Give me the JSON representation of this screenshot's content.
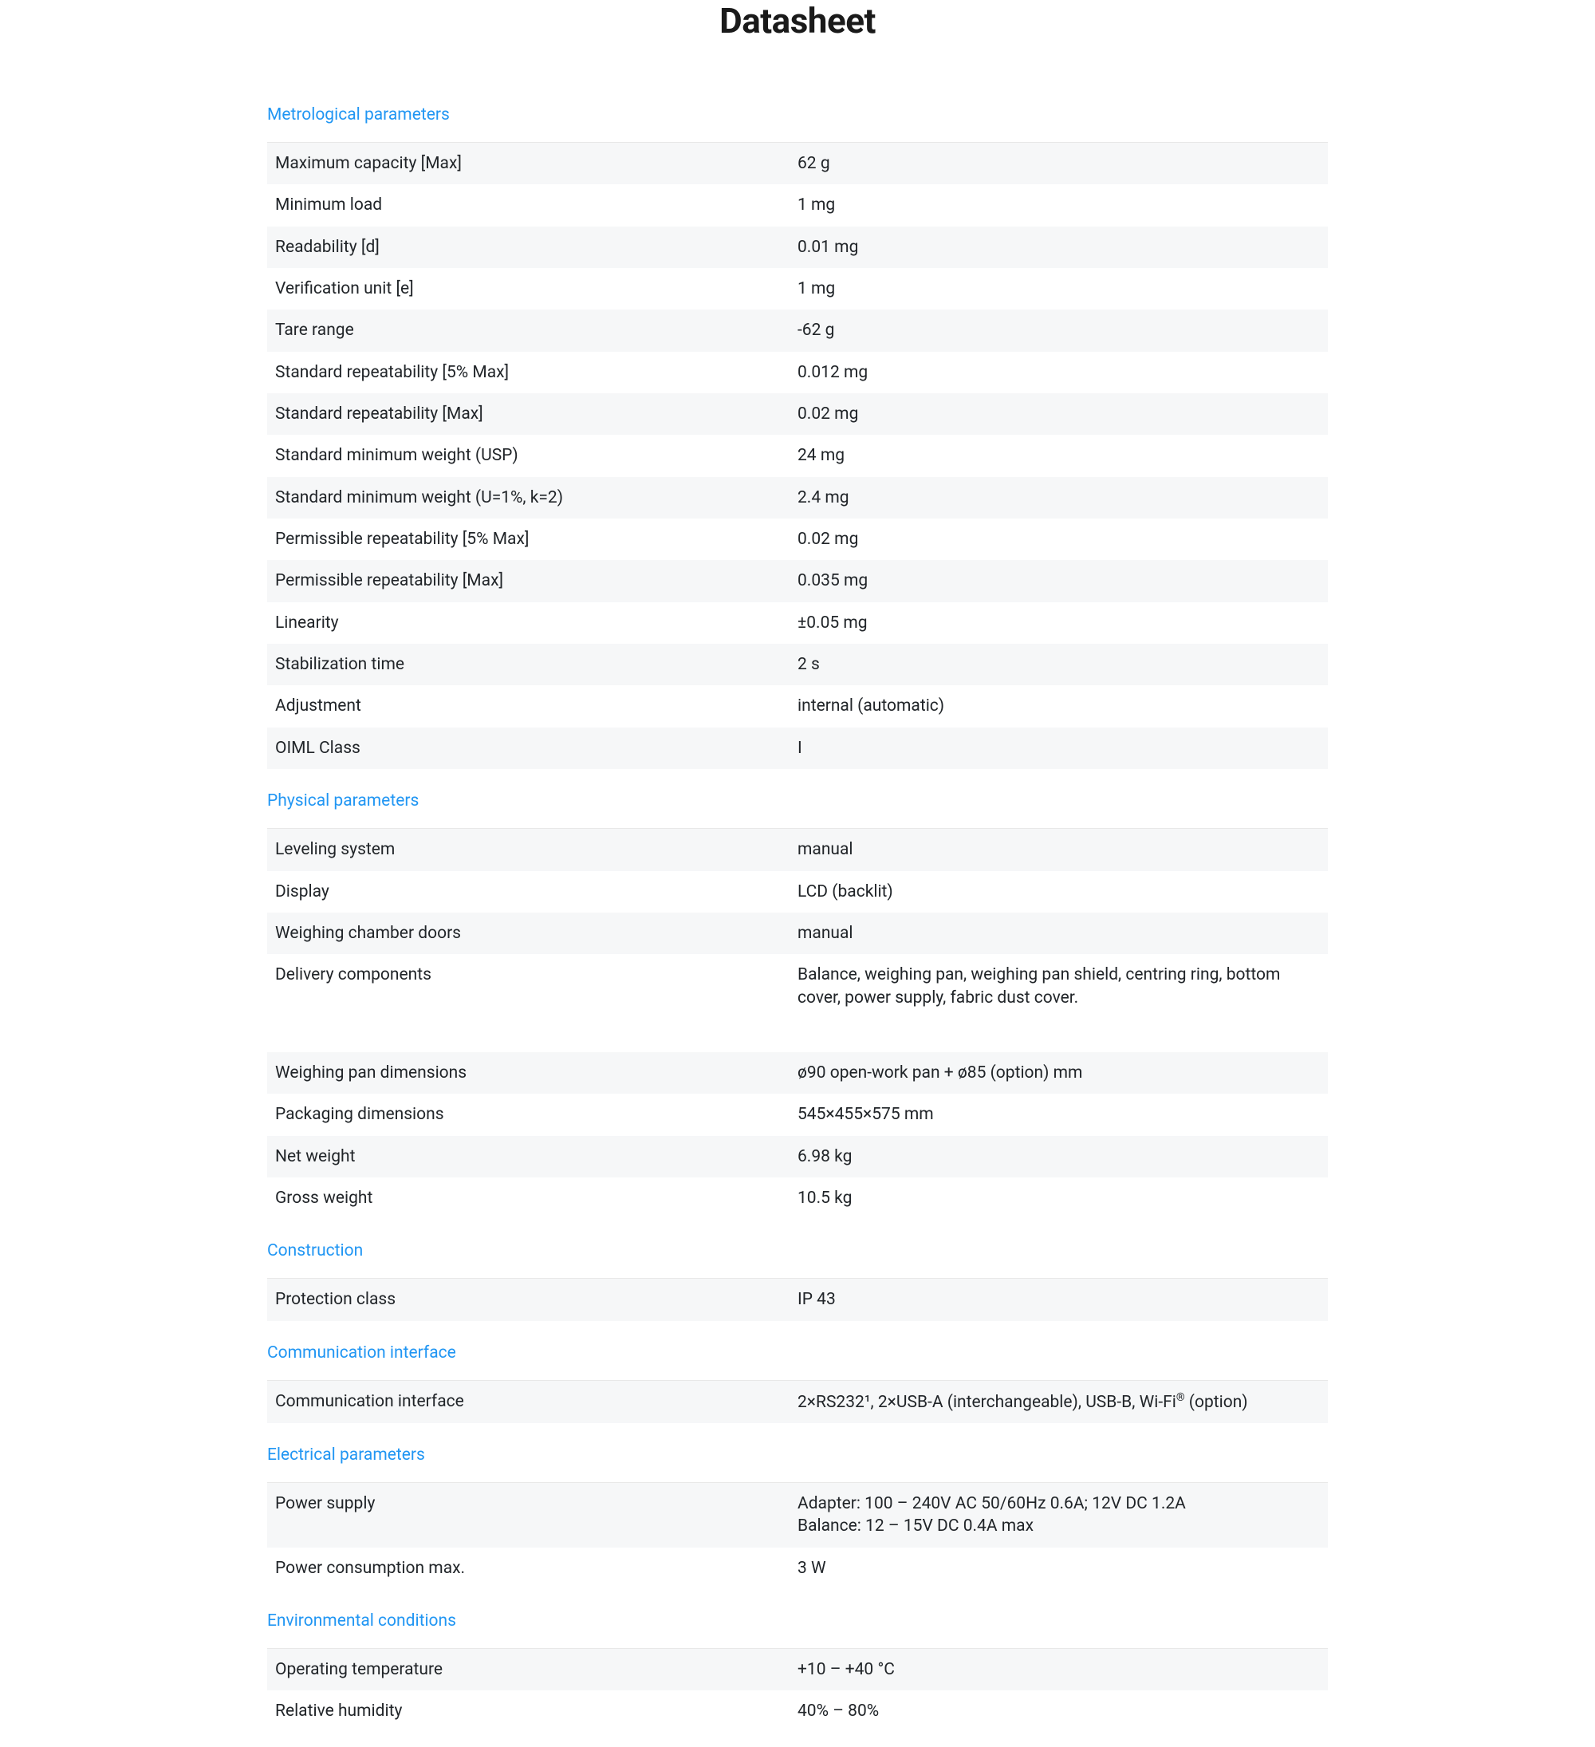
{
  "title": "Datasheet",
  "sections": [
    {
      "header": "Metrological parameters",
      "rows": [
        {
          "label": "Maximum capacity [Max]",
          "value": "62 g"
        },
        {
          "label": "Minimum load",
          "value": "1 mg"
        },
        {
          "label": "Readability [d]",
          "value": "0.01 mg"
        },
        {
          "label": "Verification unit [e]",
          "value": "1 mg"
        },
        {
          "label": "Tare range",
          "value": "-62 g"
        },
        {
          "label": "Standard repeatability [5% Max]",
          "value": "0.012 mg"
        },
        {
          "label": "Standard repeatability [Max]",
          "value": "0.02 mg"
        },
        {
          "label": "Standard minimum weight (USP)",
          "value": "24 mg"
        },
        {
          "label": "Standard minimum weight (U=1%, k=2)",
          "value": "2.4 mg"
        },
        {
          "label": "Permissible repeatability [5% Max]",
          "value": "0.02 mg"
        },
        {
          "label": "Permissible repeatability [Max]",
          "value": "0.035 mg"
        },
        {
          "label": "Linearity",
          "value": "±0.05 mg"
        },
        {
          "label": "Stabilization time",
          "value": "2 s"
        },
        {
          "label": "Adjustment",
          "value": "internal (automatic)"
        },
        {
          "label": "OIML Class",
          "value": "I"
        }
      ]
    },
    {
      "header": "Physical parameters",
      "rows": [
        {
          "label": "Leveling system",
          "value": "manual"
        },
        {
          "label": "Display",
          "value": "LCD (backlit)"
        },
        {
          "label": "Weighing chamber doors",
          "value": "manual"
        },
        {
          "label": "Delivery components",
          "value": "Balance, weighing pan, weighing pan shield, centring ring, bottom cover, power supply, fabric dust cover."
        }
      ]
    },
    {
      "header": "",
      "rows": [
        {
          "label": "Weighing pan dimensions",
          "value": "ø90 open-work pan + ø85 (option) mm"
        },
        {
          "label": "Packaging dimensions",
          "value": "545×455×575 mm"
        },
        {
          "label": "Net weight",
          "value": "6.98 kg"
        },
        {
          "label": "Gross weight",
          "value": "10.5 kg"
        }
      ]
    },
    {
      "header": "Construction",
      "rows": [
        {
          "label": "Protection class",
          "value": "IP 43"
        }
      ]
    },
    {
      "header": "Communication interface",
      "rows": [
        {
          "label": "Communication interface",
          "value": "2×RS232¹, 2×USB-A (interchangeable), USB-B, Wi-Fi<sup>®</sup> (option)"
        }
      ]
    },
    {
      "header": "Electrical parameters",
      "rows": [
        {
          "label": "Power supply",
          "value": "Adapter: 100 – 240V AC 50/60Hz 0.6A; 12V DC 1.2A<br>Balance: 12 – 15V DC 0.4A max"
        },
        {
          "label": "Power consumption max.",
          "value": "3 W"
        }
      ]
    },
    {
      "header": "Environmental conditions",
      "rows": [
        {
          "label": "Operating temperature",
          "value": "+10 – +40 °C"
        },
        {
          "label": "Relative humidity",
          "value": "40% – 80%"
        }
      ]
    }
  ],
  "styling": {
    "title_color": "#1a1a1a",
    "title_fontsize": 44,
    "header_color": "#2196f3",
    "header_fontsize": 21,
    "row_fontsize": 21,
    "row_odd_bg": "#f6f7f8",
    "row_even_bg": "#ffffff",
    "text_color": "#212529",
    "border_color": "#e8e8e8",
    "label_col_width_pct": 50
  }
}
